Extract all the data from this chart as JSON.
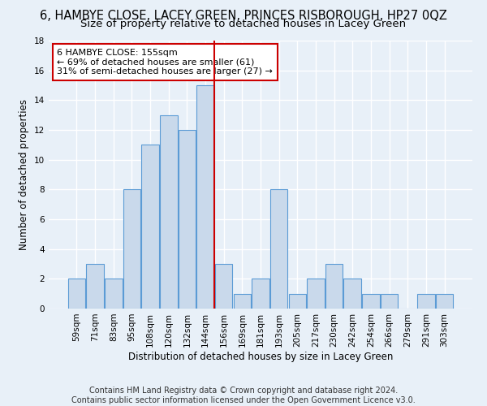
{
  "title": "6, HAMBYE CLOSE, LACEY GREEN, PRINCES RISBOROUGH, HP27 0QZ",
  "subtitle": "Size of property relative to detached houses in Lacey Green",
  "xlabel": "Distribution of detached houses by size in Lacey Green",
  "ylabel": "Number of detached properties",
  "bar_labels": [
    "59sqm",
    "71sqm",
    "83sqm",
    "95sqm",
    "108sqm",
    "120sqm",
    "132sqm",
    "144sqm",
    "156sqm",
    "169sqm",
    "181sqm",
    "193sqm",
    "205sqm",
    "217sqm",
    "230sqm",
    "242sqm",
    "254sqm",
    "266sqm",
    "279sqm",
    "291sqm",
    "303sqm"
  ],
  "bar_values": [
    2,
    3,
    2,
    8,
    11,
    13,
    12,
    15,
    3,
    1,
    2,
    8,
    1,
    2,
    3,
    2,
    1,
    1,
    0,
    1,
    1
  ],
  "bar_color": "#c9d9eb",
  "bar_edgecolor": "#5b9bd5",
  "vline_color": "#cc0000",
  "annotation_text": "6 HAMBYE CLOSE: 155sqm\n← 69% of detached houses are smaller (61)\n31% of semi-detached houses are larger (27) →",
  "annotation_box_edgecolor": "#cc0000",
  "annotation_box_facecolor": "#ffffff",
  "ylim": [
    0,
    18
  ],
  "yticks": [
    0,
    2,
    4,
    6,
    8,
    10,
    12,
    14,
    16,
    18
  ],
  "footer_line1": "Contains HM Land Registry data © Crown copyright and database right 2024.",
  "footer_line2": "Contains public sector information licensed under the Open Government Licence v3.0.",
  "background_color": "#e8f0f8",
  "grid_color": "#ffffff",
  "title_fontsize": 10.5,
  "subtitle_fontsize": 9.5,
  "axis_label_fontsize": 8.5,
  "tick_fontsize": 7.5,
  "annotation_fontsize": 8,
  "footer_fontsize": 7
}
